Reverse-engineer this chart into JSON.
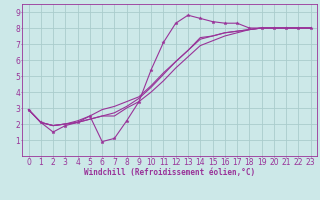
{
  "bg_color": "#cce8e8",
  "grid_color": "#aacccc",
  "line_color": "#993399",
  "marker_color": "#993399",
  "xlabel": "Windchill (Refroidissement éolien,°C)",
  "xlim": [
    -0.5,
    23.5
  ],
  "ylim": [
    0,
    9.5
  ],
  "xticks": [
    0,
    1,
    2,
    3,
    4,
    5,
    6,
    7,
    8,
    9,
    10,
    11,
    12,
    13,
    14,
    15,
    16,
    17,
    18,
    19,
    20,
    21,
    22,
    23
  ],
  "yticks": [
    1,
    2,
    3,
    4,
    5,
    6,
    7,
    8,
    9
  ],
  "series": [
    {
      "x": [
        0,
        1,
        2,
        3,
        4,
        5,
        6,
        7,
        8,
        9,
        10,
        11,
        12,
        13,
        14,
        15,
        16,
        17,
        18,
        19,
        20,
        21,
        22,
        23
      ],
      "y": [
        2.9,
        2.1,
        1.5,
        1.9,
        2.1,
        2.5,
        0.9,
        1.1,
        2.2,
        3.4,
        5.4,
        7.1,
        8.3,
        8.8,
        8.6,
        8.4,
        8.3,
        8.3,
        8.0,
        8.0,
        8.0,
        8.0,
        8.0,
        8.0
      ],
      "marker": true
    },
    {
      "x": [
        0,
        1,
        2,
        3,
        4,
        5,
        6,
        7,
        8,
        9,
        10,
        11,
        12,
        13,
        14,
        15,
        16,
        17,
        18,
        19,
        20,
        21,
        22,
        23
      ],
      "y": [
        2.9,
        2.1,
        1.9,
        2.0,
        2.1,
        2.3,
        2.5,
        2.5,
        3.0,
        3.4,
        4.0,
        4.7,
        5.5,
        6.2,
        6.9,
        7.2,
        7.5,
        7.7,
        7.9,
        8.0,
        8.0,
        8.0,
        8.0,
        8.0
      ],
      "marker": false
    },
    {
      "x": [
        0,
        1,
        2,
        3,
        4,
        5,
        6,
        7,
        8,
        9,
        10,
        11,
        12,
        13,
        14,
        15,
        16,
        17,
        18,
        19,
        20,
        21,
        22,
        23
      ],
      "y": [
        2.9,
        2.1,
        1.9,
        2.0,
        2.1,
        2.3,
        2.5,
        2.7,
        3.1,
        3.6,
        4.3,
        5.1,
        5.9,
        6.6,
        7.3,
        7.5,
        7.7,
        7.8,
        7.9,
        8.0,
        8.0,
        8.0,
        8.0,
        8.0
      ],
      "marker": false
    },
    {
      "x": [
        0,
        1,
        2,
        3,
        4,
        5,
        6,
        7,
        8,
        9,
        10,
        11,
        12,
        13,
        14,
        15,
        16,
        17,
        18,
        19,
        20,
        21,
        22,
        23
      ],
      "y": [
        2.9,
        2.1,
        1.9,
        2.0,
        2.2,
        2.5,
        2.9,
        3.1,
        3.4,
        3.7,
        4.4,
        5.2,
        5.9,
        6.6,
        7.4,
        7.5,
        7.7,
        7.8,
        7.9,
        8.0,
        8.0,
        8.0,
        8.0,
        8.0
      ],
      "marker": false
    }
  ],
  "xlabel_fontsize": 5.5,
  "tick_fontsize": 5.5,
  "line_width": 0.8,
  "marker_size": 2.5
}
